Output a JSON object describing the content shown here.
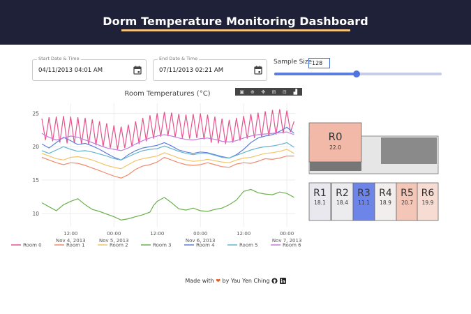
{
  "header": {
    "title": "Dorm Temperature Monitoring Dashboard"
  },
  "controls": {
    "start": {
      "label": "Start Date & Time",
      "value": "04/11/2013 04:01 AM"
    },
    "end": {
      "label": "End Date & Time",
      "value": "07/11/2013 02:21 AM"
    },
    "sample": {
      "label": "Sample Size",
      "value": "128",
      "fraction": 0.49
    }
  },
  "toolbar": {
    "icons": [
      "camera-icon",
      "zoom-icon",
      "pan-icon",
      "zoom-in-icon",
      "zoom-out-icon",
      "autoscale-icon"
    ]
  },
  "chart_data": {
    "type": "line",
    "title": "Room Temperatures (°C)",
    "xlabel": "",
    "ylabel": "",
    "ylim": [
      8,
      26.5
    ],
    "yticks": [
      10,
      15,
      20,
      25
    ],
    "xticks": [
      {
        "t": 8,
        "label": "12:00",
        "sub": "Nov 4, 2013"
      },
      {
        "t": 20,
        "label": "00:00",
        "sub": "Nov 5, 2013"
      },
      {
        "t": 32,
        "label": "12:00",
        "sub": ""
      },
      {
        "t": 44,
        "label": "00:00",
        "sub": "Nov 6, 2013"
      },
      {
        "t": 56,
        "label": "12:00",
        "sub": ""
      },
      {
        "t": 68,
        "label": "00:00",
        "sub": "Nov 7, 2013"
      }
    ],
    "xlim": [
      0,
      70.3
    ],
    "series": [
      {
        "name": "Room 0",
        "color": "#e7538d",
        "x": [
          0,
          1,
          2,
          3,
          4,
          5,
          6,
          7,
          8,
          9,
          10,
          11,
          12,
          13,
          14,
          15,
          16,
          17,
          18,
          19,
          20,
          21,
          22,
          23,
          24,
          25,
          26,
          27,
          28,
          29,
          30,
          31,
          32,
          33,
          34,
          35,
          36,
          37,
          38,
          39,
          40,
          41,
          42,
          43,
          44,
          45,
          46,
          47,
          48,
          49,
          50,
          51,
          52,
          53,
          54,
          55,
          56,
          57,
          58,
          59,
          60,
          61,
          62,
          63,
          64,
          65,
          66,
          67,
          68,
          69,
          70
        ],
        "y": [
          24.2,
          21.0,
          24.4,
          20.8,
          24.5,
          20.6,
          24.6,
          20.5,
          24.5,
          20.5,
          24.4,
          20.4,
          24.3,
          20.3,
          24.1,
          20.2,
          23.8,
          20.0,
          23.5,
          19.8,
          23.2,
          19.6,
          23.0,
          19.8,
          23.3,
          20.0,
          23.8,
          20.4,
          24.3,
          20.8,
          24.7,
          21.2,
          25.0,
          21.5,
          25.2,
          21.6,
          25.1,
          21.4,
          24.9,
          21.3,
          24.8,
          21.2,
          24.9,
          21.3,
          25.0,
          21.1,
          24.8,
          20.6,
          24.5,
          20.5,
          24.2,
          20.4,
          24.0,
          20.6,
          24.3,
          20.9,
          24.6,
          21.2,
          24.9,
          21.3,
          25.1,
          21.4,
          25.3,
          21.6,
          25.5,
          21.8,
          25.6,
          22.0,
          25.4,
          22.2,
          23.8
        ]
      },
      {
        "name": "Room 1",
        "color": "#f08a6c",
        "x": [
          0,
          2,
          4,
          6,
          8,
          10,
          12,
          14,
          16,
          18,
          20,
          22,
          24,
          26,
          28,
          30,
          32,
          34,
          36,
          38,
          40,
          42,
          44,
          46,
          48,
          50,
          52,
          54,
          56,
          58,
          60,
          62,
          64,
          66,
          68,
          70
        ],
        "y": [
          18.4,
          18.0,
          17.6,
          17.3,
          17.6,
          17.5,
          17.2,
          16.8,
          16.4,
          16.0,
          15.6,
          15.3,
          15.8,
          16.6,
          17.1,
          17.3,
          17.7,
          18.4,
          18.0,
          17.6,
          17.3,
          17.2,
          17.3,
          17.6,
          17.3,
          17.0,
          16.9,
          17.4,
          17.6,
          17.5,
          17.8,
          18.2,
          18.1,
          18.3,
          18.6,
          18.6
        ]
      },
      {
        "name": "Room 2",
        "color": "#f2c467",
        "x": [
          0,
          2,
          4,
          6,
          8,
          10,
          12,
          14,
          16,
          18,
          20,
          22,
          24,
          26,
          28,
          30,
          32,
          34,
          36,
          38,
          40,
          42,
          44,
          46,
          48,
          50,
          52,
          54,
          56,
          58,
          60,
          62,
          64,
          66,
          68,
          70
        ],
        "y": [
          19.0,
          18.6,
          18.2,
          18.0,
          18.4,
          18.5,
          18.3,
          18.0,
          17.6,
          17.2,
          16.9,
          16.7,
          17.3,
          17.9,
          18.2,
          18.4,
          18.6,
          19.1,
          18.7,
          18.3,
          18.0,
          17.8,
          17.9,
          18.1,
          17.9,
          17.7,
          17.6,
          18.0,
          18.3,
          18.4,
          18.7,
          19.0,
          19.1,
          19.3,
          19.6,
          19.0
        ]
      },
      {
        "name": "Room 3",
        "color": "#6ab04c",
        "x": [
          0,
          2,
          4,
          6,
          8,
          10,
          12,
          14,
          16,
          18,
          20,
          22,
          24,
          26,
          28,
          30,
          31,
          32,
          34,
          36,
          38,
          40,
          42,
          44,
          46,
          48,
          50,
          52,
          54,
          56,
          58,
          60,
          62,
          64,
          66,
          68,
          70
        ],
        "y": [
          11.6,
          11.0,
          10.4,
          11.3,
          11.8,
          12.2,
          11.3,
          10.6,
          10.3,
          9.9,
          9.5,
          9.0,
          9.2,
          9.5,
          9.8,
          10.2,
          11.2,
          11.8,
          12.4,
          11.6,
          10.7,
          10.5,
          10.8,
          10.4,
          10.3,
          10.6,
          10.8,
          11.3,
          12.0,
          13.3,
          13.6,
          13.1,
          12.9,
          12.8,
          13.2,
          13.0,
          12.4
        ]
      },
      {
        "name": "Room 4",
        "color": "#5e7fdb",
        "x": [
          0,
          2,
          4,
          6,
          8,
          10,
          12,
          14,
          16,
          18,
          20,
          22,
          24,
          26,
          28,
          30,
          32,
          34,
          36,
          38,
          40,
          42,
          44,
          46,
          48,
          50,
          52,
          54,
          56,
          58,
          60,
          62,
          64,
          66,
          68,
          70
        ],
        "y": [
          20.4,
          19.8,
          20.6,
          21.4,
          20.9,
          20.3,
          20.5,
          20.1,
          19.6,
          19.0,
          18.4,
          18.0,
          18.8,
          19.4,
          19.8,
          20.0,
          20.2,
          20.6,
          20.1,
          19.5,
          19.2,
          19.0,
          19.2,
          19.1,
          18.8,
          18.5,
          18.3,
          18.8,
          19.6,
          20.6,
          21.3,
          21.6,
          21.8,
          22.3,
          22.9,
          22.0
        ]
      },
      {
        "name": "Room 5",
        "color": "#63b4cf",
        "x": [
          0,
          2,
          4,
          6,
          8,
          10,
          12,
          14,
          16,
          18,
          20,
          22,
          24,
          26,
          28,
          30,
          32,
          34,
          36,
          38,
          40,
          42,
          44,
          46,
          48,
          50,
          52,
          54,
          56,
          58,
          60,
          62,
          64,
          66,
          68,
          70
        ],
        "y": [
          19.4,
          19.0,
          19.5,
          20.0,
          19.6,
          19.3,
          19.4,
          19.2,
          18.9,
          18.6,
          18.2,
          18.0,
          18.5,
          19.0,
          19.4,
          19.6,
          19.7,
          20.1,
          19.7,
          19.3,
          19.0,
          18.8,
          19.0,
          19.0,
          18.7,
          18.4,
          18.3,
          18.7,
          19.1,
          19.5,
          19.8,
          20.0,
          20.1,
          20.3,
          20.6,
          19.9
        ]
      },
      {
        "name": "Room 6",
        "color": "#c77bdc",
        "x": [
          0,
          2,
          4,
          6,
          8,
          10,
          12,
          14,
          16,
          18,
          20,
          22,
          24,
          26,
          28,
          30,
          32,
          34,
          36,
          38,
          40,
          42,
          44,
          46,
          48,
          50,
          52,
          54,
          56,
          58,
          60,
          62,
          64,
          66,
          68,
          70
        ],
        "y": [
          22.0,
          21.4,
          21.0,
          21.3,
          21.6,
          21.4,
          21.0,
          20.6,
          20.2,
          19.8,
          19.6,
          19.4,
          19.8,
          20.4,
          20.9,
          21.3,
          21.6,
          21.8,
          21.6,
          21.3,
          21.1,
          21.0,
          21.2,
          21.3,
          21.1,
          20.8,
          20.7,
          20.9,
          21.3,
          21.6,
          21.8,
          21.9,
          22.0,
          22.1,
          22.2,
          21.8
        ]
      }
    ]
  },
  "floorplan": {
    "rooms": [
      {
        "label": "R0",
        "value": "22.0",
        "color": "#f2b9a8"
      },
      {
        "label": "R1",
        "value": "18.1",
        "color": "#e8e8ee"
      },
      {
        "label": "R2",
        "value": "18.4",
        "color": "#ececef"
      },
      {
        "label": "R3",
        "value": "11.1",
        "color": "#6d84e8"
      },
      {
        "label": "R4",
        "value": "18.9",
        "color": "#f2eeee"
      },
      {
        "label": "R5",
        "value": "20.7",
        "color": "#f4c6b7"
      },
      {
        "label": "R6",
        "value": "19.9",
        "color": "#f6dcd2"
      }
    ]
  },
  "footer": {
    "made": "Made with",
    "by": "by Yau Yen Ching"
  }
}
